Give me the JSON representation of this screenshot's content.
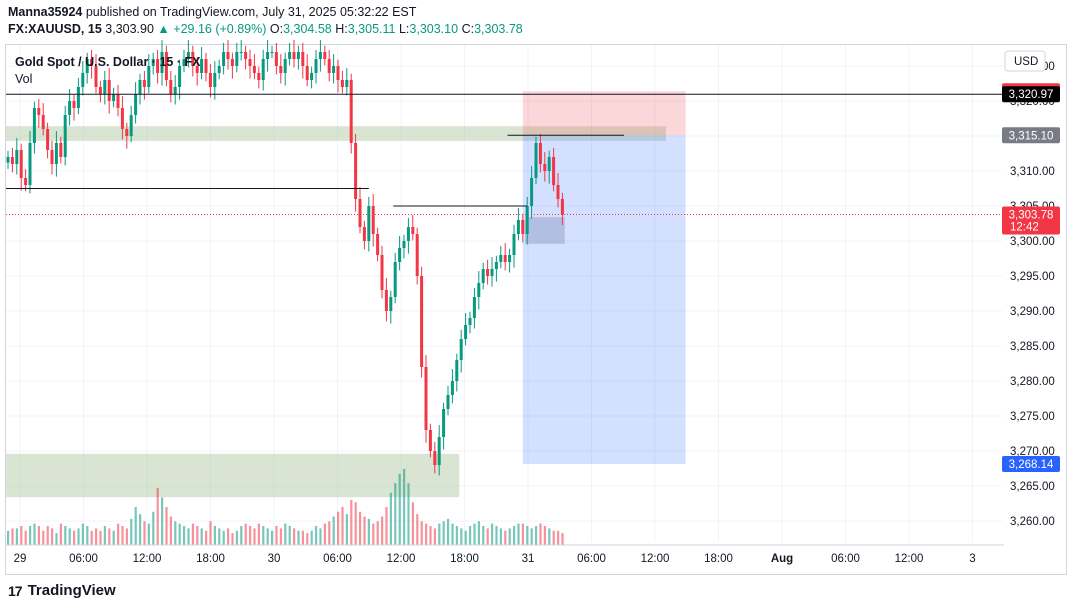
{
  "header": {
    "author": "Manna35924",
    "published_text": "published on TradingView.com, July 31, 2025 05:32:22 EST",
    "symbol": "FX:XAUUSD, 15",
    "last": "3,303.90",
    "change": "+29.16 (+0.89%)",
    "open_label": "O:",
    "open": "3,304.58",
    "high_label": "H:",
    "high": "3,305.11",
    "low_label": "L:",
    "low": "3,303.10",
    "close_label": "C:",
    "close": "3,303.78"
  },
  "legend": {
    "instrument": "Gold Spot / U.S. Dollar · 15 · FX",
    "volume": "Vol"
  },
  "brand": {
    "logo": "17",
    "name": "TradingView"
  },
  "colors": {
    "up": "#089981",
    "down": "#f23645",
    "grid": "#f0f3fa",
    "zone": "#9fbf8f",
    "target": "#2962ff",
    "stop": "#f23645"
  },
  "chart_data": {
    "type": "candlestick",
    "currency": "USD",
    "ylim": [
      3257,
      3328
    ],
    "y_ticks": [
      3325,
      3320,
      3315,
      3310,
      3305,
      3300,
      3295,
      3290,
      3285,
      3280,
      3275,
      3270,
      3265,
      3260
    ],
    "y_tick_labels": [
      "3,325.00",
      "3,320.00",
      "3,315.00",
      "3,310.00",
      "3,305.00",
      "3,300.00",
      "3,295.00",
      "3,290.00",
      "3,285.00",
      "3,280.00",
      "3,275.00",
      "3,270.00",
      "3,265.00",
      "3,260.00"
    ],
    "x_labels": [
      "29",
      "06:00",
      "12:00",
      "18:00",
      "30",
      "06:00",
      "12:00",
      "18:00",
      "31",
      "06:00",
      "12:00",
      "18:00",
      "Aug",
      "06:00",
      "12:00",
      "3"
    ],
    "price_tags": [
      {
        "label": "3,321.39",
        "value": 3321.39,
        "kind": "stop"
      },
      {
        "label": "3,320.97",
        "value": 3320.97,
        "kind": "line"
      },
      {
        "label": "3,315.10",
        "value": 3315.1,
        "kind": "level"
      },
      {
        "label": "3,303.78",
        "value": 3303.78,
        "kind": "last",
        "countdown": "12:42"
      },
      {
        "label": "3,268.14",
        "value": 3268.14,
        "kind": "target"
      }
    ],
    "horizontal_lines": [
      {
        "price": 3320.97,
        "from_bar": 0,
        "to": "end"
      },
      {
        "price": 3307.5,
        "from_bar": 0,
        "to_bar": 82
      },
      {
        "price": 3305.0,
        "from_bar": 88,
        "to_bar": 118
      },
      {
        "price": 3315.1,
        "from_bar": 114,
        "to_bar": 140
      }
    ],
    "zones": [
      {
        "from_bar": 0,
        "to_bar": 150,
        "top": 3316.4,
        "bottom": 3314.3
      },
      {
        "from_bar": 0,
        "to_bar": 103,
        "top": 3269.6,
        "bottom": 3263.4
      },
      {
        "from_bar": 118,
        "to_bar": 127,
        "top": 3303.4,
        "bottom": 3299.6
      }
    ],
    "position": {
      "from_bar": 117,
      "to_bar": 154,
      "entry": 3315.1,
      "stop": 3321.39,
      "target": 3268.14
    },
    "ohlc_path": [
      3312,
      3311,
      3313,
      3309,
      3308,
      3314,
      3319,
      3318,
      3316,
      3313,
      3311,
      3314,
      3312,
      3318,
      3320,
      3319,
      3322,
      3324,
      3326,
      3325,
      3322,
      3321,
      3323,
      3320,
      3321,
      3319,
      3316,
      3315,
      3318,
      3321,
      3323,
      3322,
      3325,
      3326,
      3324,
      3327,
      3323,
      3321,
      3322,
      3325,
      3326,
      3327,
      3325,
      3324,
      3326,
      3324,
      3322,
      3324,
      3325,
      3327,
      3326,
      3325,
      3327,
      3327,
      3326,
      3325,
      3324,
      3323,
      3326,
      3327,
      3327,
      3325,
      3324,
      3326,
      3327,
      3326,
      3327,
      3325,
      3323,
      3324,
      3326,
      3327,
      3326,
      3324,
      3325,
      3323,
      3322,
      3323,
      3314,
      3306,
      3302,
      3300,
      3305,
      3301,
      3298,
      3293,
      3290,
      3292,
      3297,
      3299,
      3300,
      3302,
      3301,
      3295,
      3282,
      3273,
      3270,
      3268,
      3272,
      3276,
      3278,
      3280,
      3283,
      3286,
      3288,
      3289,
      3292,
      3294,
      3296,
      3295,
      3296,
      3297,
      3298,
      3297,
      3298,
      3301,
      3303,
      3301,
      3305,
      3309,
      3314,
      3311,
      3310,
      3312,
      3308,
      3306,
      3303.78
    ],
    "volume_path": [
      6,
      7,
      7,
      8,
      6,
      8,
      9,
      8,
      6,
      8,
      7,
      5,
      9,
      8,
      7,
      6,
      7,
      9,
      8,
      6,
      7,
      6,
      8,
      7,
      6,
      9,
      8,
      7,
      11,
      16,
      13,
      10,
      9,
      14,
      24,
      20,
      16,
      12,
      10,
      9,
      8,
      7,
      9,
      8,
      7,
      6,
      10,
      8,
      7,
      6,
      7,
      5,
      6,
      8,
      9,
      8,
      7,
      9,
      8,
      7,
      6,
      8,
      7,
      9,
      8,
      7,
      6,
      6,
      5,
      6,
      8,
      7,
      9,
      10,
      12,
      14,
      16,
      13,
      19,
      18,
      14,
      12,
      11,
      9,
      10,
      12,
      16,
      22,
      26,
      30,
      32,
      26,
      18,
      13,
      10,
      9,
      8,
      7,
      9,
      10,
      11,
      9,
      8,
      7,
      6,
      8,
      9,
      10,
      8,
      7,
      9,
      8,
      7,
      6,
      7,
      8,
      9,
      9,
      8,
      7,
      8,
      9,
      8,
      7,
      6,
      6,
      5
    ]
  }
}
